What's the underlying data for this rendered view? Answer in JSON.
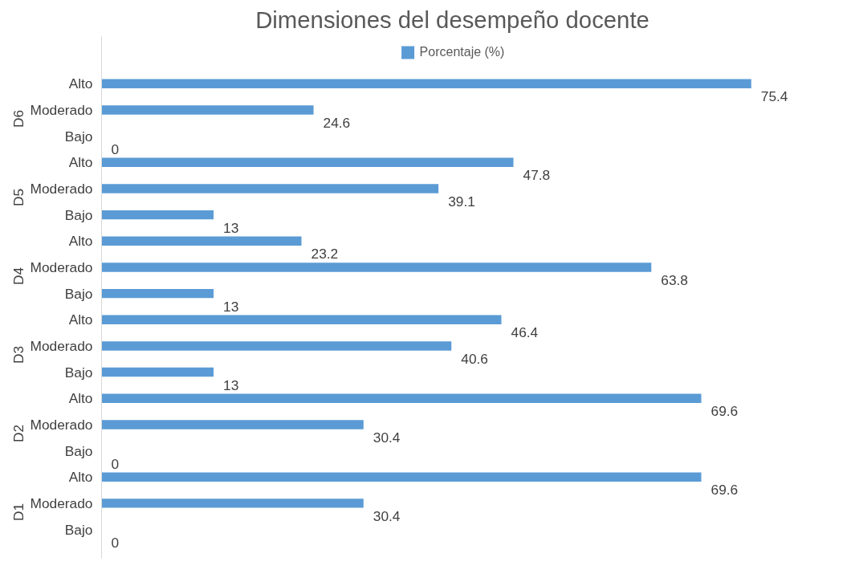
{
  "chart_data": {
    "type": "bar",
    "orientation": "horizontal",
    "title": "Dimensiones del desempeño docente",
    "categories": [
      "Alto",
      "Moderado",
      "Bajo",
      "Alto",
      "Moderado",
      "Bajo",
      "Alto",
      "Moderado",
      "Bajo",
      "Alto",
      "Moderado",
      "Bajo",
      "Alto",
      "Moderado",
      "Bajo",
      "Alto",
      "Moderado",
      "Bajo"
    ],
    "annotations": [
      "D6",
      "D5",
      "D4",
      "D3",
      "D2",
      "D1"
    ],
    "series": [
      {
        "name": "Porcentaje (%)",
        "color": "#5b9bd5",
        "values": [
          75.4,
          24.6,
          0,
          47.8,
          39.1,
          13,
          23.2,
          63.8,
          13,
          46.4,
          40.6,
          13,
          69.6,
          30.4,
          0,
          69.6,
          30.4,
          0
        ]
      }
    ],
    "data_labels": true,
    "legend": "top",
    "grid": false
  }
}
